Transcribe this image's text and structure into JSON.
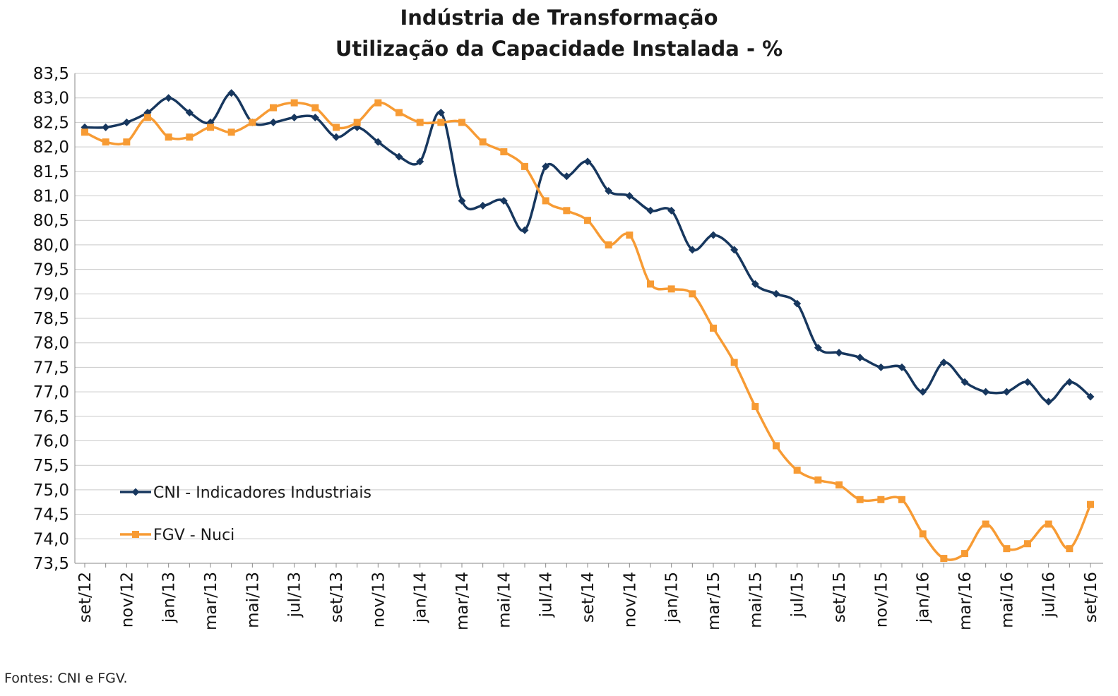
{
  "chart_data": {
    "type": "line",
    "title": "Indústria de Transformação",
    "subtitle": "Utilização da Capacidade Instalada - %",
    "xlabel": "",
    "ylabel": "",
    "ylim": [
      73.5,
      83.5
    ],
    "ystep": 0.5,
    "grid": true,
    "legend_position": "bottom-left",
    "categories": [
      "set/12",
      "out/12",
      "nov/12",
      "dez/12",
      "jan/13",
      "fev/13",
      "mar/13",
      "abr/13",
      "mai/13",
      "jun/13",
      "jul/13",
      "ago/13",
      "set/13",
      "out/13",
      "nov/13",
      "dez/13",
      "jan/14",
      "fev/14",
      "mar/14",
      "abr/14",
      "mai/14",
      "jun/14",
      "jul/14",
      "ago/14",
      "set/14",
      "out/14",
      "nov/14",
      "dez/14",
      "jan/15",
      "fev/15",
      "mar/15",
      "abr/15",
      "mai/15",
      "jun/15",
      "jul/15",
      "ago/15",
      "set/15",
      "out/15",
      "nov/15",
      "dez/15",
      "jan/16",
      "fev/16",
      "mar/16",
      "abr/16",
      "mai/16",
      "jun/16",
      "jul/16",
      "ago/16",
      "set/16"
    ],
    "x_tick_labels": [
      "set/12",
      "nov/12",
      "jan/13",
      "mar/13",
      "mai/13",
      "jul/13",
      "set/13",
      "nov/13",
      "jan/14",
      "mar/14",
      "mai/14",
      "jul/14",
      "set/14",
      "nov/14",
      "jan/15",
      "mar/15",
      "mai/15",
      "jul/15",
      "set/15",
      "nov/15",
      "jan/16",
      "mar/16",
      "mai/16",
      "jul/16",
      "set/16"
    ],
    "y_tick_labels": [
      "73,5",
      "74,0",
      "74,5",
      "75,0",
      "75,5",
      "76,0",
      "76,5",
      "77,0",
      "77,5",
      "78,0",
      "78,5",
      "79,0",
      "79,5",
      "80,0",
      "80,5",
      "81,0",
      "81,5",
      "82,0",
      "82,5",
      "83,0",
      "83,5"
    ],
    "series": [
      {
        "name": "CNI - Indicadores Industriais",
        "color": "#17375E",
        "marker": "diamond",
        "values": [
          82.4,
          82.4,
          82.5,
          82.7,
          83.0,
          82.7,
          82.5,
          83.1,
          82.5,
          82.5,
          82.6,
          82.6,
          82.2,
          82.4,
          82.1,
          81.8,
          81.7,
          82.7,
          80.9,
          80.8,
          80.9,
          80.3,
          81.6,
          81.4,
          81.7,
          81.1,
          81.0,
          80.7,
          80.7,
          79.9,
          80.2,
          79.9,
          79.2,
          79.0,
          78.8,
          77.9,
          77.8,
          77.7,
          77.5,
          77.5,
          77.0,
          77.6,
          77.2,
          77.0,
          77.0,
          77.2,
          76.8,
          77.2,
          76.9
        ]
      },
      {
        "name": "FGV - Nuci",
        "color": "#F79B34",
        "marker": "square",
        "values": [
          82.3,
          82.1,
          82.1,
          82.6,
          82.2,
          82.2,
          82.4,
          82.3,
          82.5,
          82.8,
          82.9,
          82.8,
          82.4,
          82.5,
          82.9,
          82.7,
          82.5,
          82.5,
          82.5,
          82.1,
          81.9,
          81.6,
          80.9,
          80.7,
          80.5,
          80.0,
          80.2,
          79.2,
          79.1,
          79.0,
          78.3,
          77.6,
          76.7,
          75.9,
          75.4,
          75.2,
          75.1,
          74.8,
          74.8,
          74.8,
          74.1,
          73.6,
          73.7,
          74.3,
          73.8,
          73.9,
          74.3,
          73.8,
          74.7
        ]
      }
    ]
  },
  "source_note": "Fontes: CNI e FGV."
}
